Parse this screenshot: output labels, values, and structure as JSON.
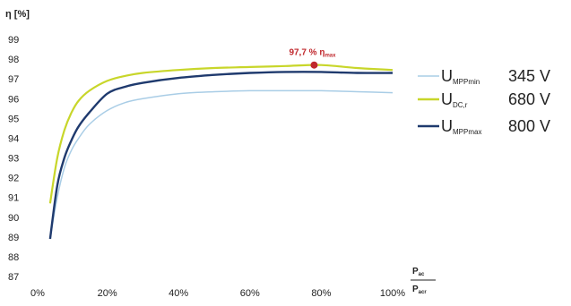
{
  "chart_data": {
    "type": "line",
    "ylabel": "η [%]",
    "xlabel": {
      "numerator": "P",
      "numerator_sub": "ac",
      "denominator": "P",
      "denominator_sub": "acr"
    },
    "x_ticks": [
      "0%",
      "20%",
      "40%",
      "60%",
      "80%",
      "100%"
    ],
    "y_ticks": [
      "87",
      "88",
      "89",
      "90",
      "91",
      "92",
      "93",
      "94",
      "95",
      "96",
      "97",
      "98",
      "99"
    ],
    "xlim": [
      0,
      100
    ],
    "ylim": [
      87,
      99
    ],
    "grid": false,
    "legend_position": "right",
    "series": [
      {
        "name": "U_MPPmin 345 V",
        "label_main": "U",
        "label_sub": "MPPmin",
        "label_value": "345 V",
        "color": "#a9cde6",
        "x": [
          4,
          6,
          8,
          10,
          12,
          15,
          20,
          25,
          30,
          40,
          50,
          60,
          70,
          80,
          90,
          100
        ],
        "y": [
          88.9,
          91.0,
          92.5,
          93.4,
          94.0,
          94.7,
          95.4,
          95.8,
          96.0,
          96.25,
          96.35,
          96.4,
          96.4,
          96.4,
          96.35,
          96.3
        ]
      },
      {
        "name": "U_DC,r 680 V",
        "label_main": "U",
        "label_sub": "DC,r",
        "label_value": "680 V",
        "color": "#c8d62a",
        "x": [
          4,
          6,
          8,
          10,
          12,
          15,
          20,
          25,
          30,
          40,
          50,
          60,
          70,
          80,
          90,
          100
        ],
        "y": [
          90.7,
          93.0,
          94.4,
          95.3,
          95.9,
          96.4,
          96.9,
          97.15,
          97.3,
          97.45,
          97.55,
          97.6,
          97.65,
          97.7,
          97.55,
          97.45
        ]
      },
      {
        "name": "U_MPPmax 800 V",
        "label_main": "U",
        "label_sub": "MPPmax",
        "label_value": "800 V",
        "color": "#1f3a6e",
        "x": [
          4,
          6,
          8,
          10,
          12,
          15,
          20,
          25,
          30,
          40,
          50,
          60,
          70,
          80,
          90,
          100
        ],
        "y": [
          88.9,
          91.6,
          93.0,
          93.9,
          94.6,
          95.3,
          96.25,
          96.6,
          96.8,
          97.05,
          97.2,
          97.3,
          97.35,
          97.35,
          97.3,
          97.3
        ]
      }
    ],
    "annotation": {
      "text": "97,7 % η",
      "sub": "max",
      "x": 78,
      "y": 97.7,
      "color": "#c0282d"
    }
  }
}
